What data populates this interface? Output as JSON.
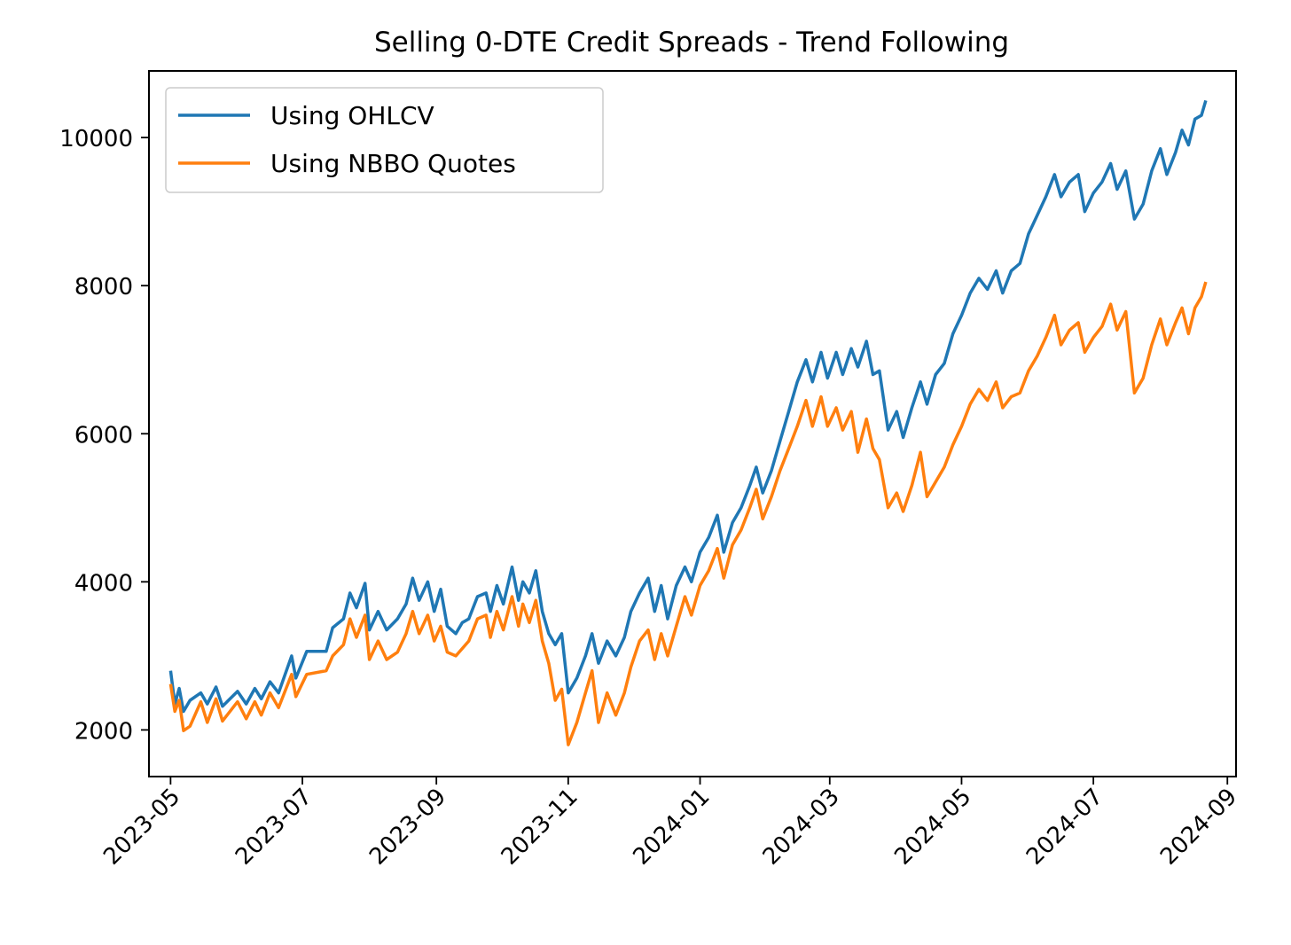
{
  "chart_data": {
    "type": "line",
    "title": "Selling 0-DTE Credit Spreads - Trend Following",
    "xlabel": "",
    "ylabel": "",
    "xlim": [
      "2023-04-21",
      "2024-09-05"
    ],
    "ylim": [
      1370,
      10900
    ],
    "x_ticks": [
      "2023-05",
      "2023-07",
      "2023-09",
      "2023-11",
      "2024-01",
      "2024-03",
      "2024-05",
      "2024-07",
      "2024-09"
    ],
    "y_ticks": [
      "2000",
      "4000",
      "6000",
      "8000",
      "10000"
    ],
    "grid": false,
    "legend_position": "upper-left",
    "series": [
      {
        "name": "Using OHLCV",
        "color": "#1f77b4",
        "points": [
          [
            "2023-05-01",
            2800
          ],
          [
            "2023-05-03",
            2350
          ],
          [
            "2023-05-05",
            2560
          ],
          [
            "2023-05-07",
            2250
          ],
          [
            "2023-05-10",
            2400
          ],
          [
            "2023-05-15",
            2500
          ],
          [
            "2023-05-18",
            2350
          ],
          [
            "2023-05-22",
            2580
          ],
          [
            "2023-05-25",
            2320
          ],
          [
            "2023-06-01",
            2520
          ],
          [
            "2023-06-05",
            2350
          ],
          [
            "2023-06-09",
            2560
          ],
          [
            "2023-06-12",
            2420
          ],
          [
            "2023-06-16",
            2650
          ],
          [
            "2023-06-20",
            2500
          ],
          [
            "2023-06-26",
            3000
          ],
          [
            "2023-06-28",
            2700
          ],
          [
            "2023-07-03",
            3060
          ],
          [
            "2023-07-12",
            3060
          ],
          [
            "2023-07-15",
            3380
          ],
          [
            "2023-07-20",
            3500
          ],
          [
            "2023-07-23",
            3850
          ],
          [
            "2023-07-26",
            3650
          ],
          [
            "2023-07-30",
            3980
          ],
          [
            "2023-08-01",
            3350
          ],
          [
            "2023-08-05",
            3600
          ],
          [
            "2023-08-09",
            3350
          ],
          [
            "2023-08-14",
            3500
          ],
          [
            "2023-08-18",
            3700
          ],
          [
            "2023-08-21",
            4050
          ],
          [
            "2023-08-24",
            3750
          ],
          [
            "2023-08-28",
            4000
          ],
          [
            "2023-08-31",
            3600
          ],
          [
            "2023-09-03",
            3900
          ],
          [
            "2023-09-06",
            3400
          ],
          [
            "2023-09-10",
            3300
          ],
          [
            "2023-09-13",
            3450
          ],
          [
            "2023-09-16",
            3500
          ],
          [
            "2023-09-20",
            3800
          ],
          [
            "2023-09-24",
            3850
          ],
          [
            "2023-09-26",
            3600
          ],
          [
            "2023-09-29",
            3950
          ],
          [
            "2023-10-02",
            3700
          ],
          [
            "2023-10-06",
            4200
          ],
          [
            "2023-10-09",
            3750
          ],
          [
            "2023-10-11",
            4000
          ],
          [
            "2023-10-14",
            3850
          ],
          [
            "2023-10-17",
            4150
          ],
          [
            "2023-10-20",
            3600
          ],
          [
            "2023-10-23",
            3300
          ],
          [
            "2023-10-26",
            3150
          ],
          [
            "2023-10-29",
            3300
          ],
          [
            "2023-11-01",
            2500
          ],
          [
            "2023-11-05",
            2700
          ],
          [
            "2023-11-09",
            3000
          ],
          [
            "2023-11-12",
            3300
          ],
          [
            "2023-11-15",
            2900
          ],
          [
            "2023-11-19",
            3200
          ],
          [
            "2023-11-23",
            3000
          ],
          [
            "2023-11-27",
            3250
          ],
          [
            "2023-11-30",
            3600
          ],
          [
            "2023-12-04",
            3850
          ],
          [
            "2023-12-08",
            4050
          ],
          [
            "2023-12-11",
            3600
          ],
          [
            "2023-12-14",
            3950
          ],
          [
            "2023-12-17",
            3500
          ],
          [
            "2023-12-21",
            3950
          ],
          [
            "2023-12-25",
            4200
          ],
          [
            "2023-12-28",
            4000
          ],
          [
            "2024-01-01",
            4400
          ],
          [
            "2024-01-05",
            4600
          ],
          [
            "2024-01-09",
            4900
          ],
          [
            "2024-01-12",
            4400
          ],
          [
            "2024-01-16",
            4800
          ],
          [
            "2024-01-20",
            5000
          ],
          [
            "2024-01-24",
            5300
          ],
          [
            "2024-01-27",
            5550
          ],
          [
            "2024-01-30",
            5200
          ],
          [
            "2024-02-03",
            5500
          ],
          [
            "2024-02-07",
            5900
          ],
          [
            "2024-02-11",
            6300
          ],
          [
            "2024-02-15",
            6700
          ],
          [
            "2024-02-19",
            7000
          ],
          [
            "2024-02-22",
            6700
          ],
          [
            "2024-02-26",
            7100
          ],
          [
            "2024-02-29",
            6750
          ],
          [
            "2024-03-04",
            7100
          ],
          [
            "2024-03-07",
            6800
          ],
          [
            "2024-03-11",
            7150
          ],
          [
            "2024-03-14",
            6900
          ],
          [
            "2024-03-18",
            7250
          ],
          [
            "2024-03-21",
            6800
          ],
          [
            "2024-03-24",
            6850
          ],
          [
            "2024-03-28",
            6050
          ],
          [
            "2024-04-01",
            6300
          ],
          [
            "2024-04-04",
            5950
          ],
          [
            "2024-04-08",
            6350
          ],
          [
            "2024-04-12",
            6700
          ],
          [
            "2024-04-15",
            6400
          ],
          [
            "2024-04-19",
            6800
          ],
          [
            "2024-04-23",
            6950
          ],
          [
            "2024-04-27",
            7350
          ],
          [
            "2024-05-01",
            7600
          ],
          [
            "2024-05-05",
            7900
          ],
          [
            "2024-05-09",
            8100
          ],
          [
            "2024-05-13",
            7950
          ],
          [
            "2024-05-17",
            8200
          ],
          [
            "2024-05-20",
            7900
          ],
          [
            "2024-05-24",
            8200
          ],
          [
            "2024-05-28",
            8300
          ],
          [
            "2024-06-01",
            8700
          ],
          [
            "2024-06-05",
            8950
          ],
          [
            "2024-06-09",
            9200
          ],
          [
            "2024-06-13",
            9500
          ],
          [
            "2024-06-16",
            9200
          ],
          [
            "2024-06-20",
            9400
          ],
          [
            "2024-06-24",
            9500
          ],
          [
            "2024-06-27",
            9000
          ],
          [
            "2024-07-01",
            9250
          ],
          [
            "2024-07-05",
            9400
          ],
          [
            "2024-07-09",
            9650
          ],
          [
            "2024-07-12",
            9300
          ],
          [
            "2024-07-16",
            9550
          ],
          [
            "2024-07-20",
            8900
          ],
          [
            "2024-07-24",
            9100
          ],
          [
            "2024-07-28",
            9550
          ],
          [
            "2024-08-01",
            9850
          ],
          [
            "2024-08-04",
            9500
          ],
          [
            "2024-08-08",
            9800
          ],
          [
            "2024-08-11",
            10100
          ],
          [
            "2024-08-14",
            9900
          ],
          [
            "2024-08-17",
            10250
          ],
          [
            "2024-08-20",
            10300
          ],
          [
            "2024-08-22",
            10500
          ]
        ]
      },
      {
        "name": "Using NBBO Quotes",
        "color": "#ff7f0e",
        "points": [
          [
            "2023-05-01",
            2620
          ],
          [
            "2023-05-03",
            2250
          ],
          [
            "2023-05-05",
            2400
          ],
          [
            "2023-05-07",
            1990
          ],
          [
            "2023-05-10",
            2050
          ],
          [
            "2023-05-15",
            2380
          ],
          [
            "2023-05-18",
            2100
          ],
          [
            "2023-05-22",
            2420
          ],
          [
            "2023-05-25",
            2120
          ],
          [
            "2023-06-01",
            2380
          ],
          [
            "2023-06-05",
            2150
          ],
          [
            "2023-06-09",
            2380
          ],
          [
            "2023-06-12",
            2200
          ],
          [
            "2023-06-16",
            2500
          ],
          [
            "2023-06-20",
            2300
          ],
          [
            "2023-06-26",
            2750
          ],
          [
            "2023-06-28",
            2450
          ],
          [
            "2023-07-03",
            2750
          ],
          [
            "2023-07-12",
            2800
          ],
          [
            "2023-07-15",
            3000
          ],
          [
            "2023-07-20",
            3150
          ],
          [
            "2023-07-23",
            3500
          ],
          [
            "2023-07-26",
            3250
          ],
          [
            "2023-07-30",
            3550
          ],
          [
            "2023-08-01",
            2950
          ],
          [
            "2023-08-05",
            3200
          ],
          [
            "2023-08-09",
            2950
          ],
          [
            "2023-08-14",
            3050
          ],
          [
            "2023-08-18",
            3300
          ],
          [
            "2023-08-21",
            3600
          ],
          [
            "2023-08-24",
            3300
          ],
          [
            "2023-08-28",
            3550
          ],
          [
            "2023-08-31",
            3200
          ],
          [
            "2023-09-03",
            3400
          ],
          [
            "2023-09-06",
            3050
          ],
          [
            "2023-09-10",
            3000
          ],
          [
            "2023-09-13",
            3100
          ],
          [
            "2023-09-16",
            3200
          ],
          [
            "2023-09-20",
            3500
          ],
          [
            "2023-09-24",
            3550
          ],
          [
            "2023-09-26",
            3250
          ],
          [
            "2023-09-29",
            3600
          ],
          [
            "2023-10-02",
            3350
          ],
          [
            "2023-10-06",
            3800
          ],
          [
            "2023-10-09",
            3400
          ],
          [
            "2023-10-11",
            3700
          ],
          [
            "2023-10-14",
            3450
          ],
          [
            "2023-10-17",
            3750
          ],
          [
            "2023-10-20",
            3200
          ],
          [
            "2023-10-23",
            2900
          ],
          [
            "2023-10-26",
            2400
          ],
          [
            "2023-10-29",
            2550
          ],
          [
            "2023-11-01",
            1800
          ],
          [
            "2023-11-05",
            2100
          ],
          [
            "2023-11-09",
            2500
          ],
          [
            "2023-11-12",
            2800
          ],
          [
            "2023-11-15",
            2100
          ],
          [
            "2023-11-19",
            2500
          ],
          [
            "2023-11-23",
            2200
          ],
          [
            "2023-11-27",
            2500
          ],
          [
            "2023-11-30",
            2850
          ],
          [
            "2023-12-04",
            3200
          ],
          [
            "2023-12-08",
            3350
          ],
          [
            "2023-12-11",
            2950
          ],
          [
            "2023-12-14",
            3300
          ],
          [
            "2023-12-17",
            3000
          ],
          [
            "2023-12-21",
            3400
          ],
          [
            "2023-12-25",
            3800
          ],
          [
            "2023-12-28",
            3550
          ],
          [
            "2024-01-01",
            3950
          ],
          [
            "2024-01-05",
            4150
          ],
          [
            "2024-01-09",
            4450
          ],
          [
            "2024-01-12",
            4050
          ],
          [
            "2024-01-16",
            4500
          ],
          [
            "2024-01-20",
            4700
          ],
          [
            "2024-01-24",
            5000
          ],
          [
            "2024-01-27",
            5250
          ],
          [
            "2024-01-30",
            4850
          ],
          [
            "2024-02-03",
            5150
          ],
          [
            "2024-02-07",
            5500
          ],
          [
            "2024-02-11",
            5800
          ],
          [
            "2024-02-15",
            6100
          ],
          [
            "2024-02-19",
            6450
          ],
          [
            "2024-02-22",
            6100
          ],
          [
            "2024-02-26",
            6500
          ],
          [
            "2024-02-29",
            6100
          ],
          [
            "2024-03-04",
            6350
          ],
          [
            "2024-03-07",
            6050
          ],
          [
            "2024-03-11",
            6300
          ],
          [
            "2024-03-14",
            5750
          ],
          [
            "2024-03-18",
            6200
          ],
          [
            "2024-03-21",
            5800
          ],
          [
            "2024-03-24",
            5650
          ],
          [
            "2024-03-28",
            5000
          ],
          [
            "2024-04-01",
            5200
          ],
          [
            "2024-04-04",
            4950
          ],
          [
            "2024-04-08",
            5300
          ],
          [
            "2024-04-12",
            5750
          ],
          [
            "2024-04-15",
            5150
          ],
          [
            "2024-04-19",
            5350
          ],
          [
            "2024-04-23",
            5550
          ],
          [
            "2024-04-27",
            5850
          ],
          [
            "2024-05-01",
            6100
          ],
          [
            "2024-05-05",
            6400
          ],
          [
            "2024-05-09",
            6600
          ],
          [
            "2024-05-13",
            6450
          ],
          [
            "2024-05-17",
            6700
          ],
          [
            "2024-05-20",
            6350
          ],
          [
            "2024-05-24",
            6500
          ],
          [
            "2024-05-28",
            6550
          ],
          [
            "2024-06-01",
            6850
          ],
          [
            "2024-06-05",
            7050
          ],
          [
            "2024-06-09",
            7300
          ],
          [
            "2024-06-13",
            7600
          ],
          [
            "2024-06-16",
            7200
          ],
          [
            "2024-06-20",
            7400
          ],
          [
            "2024-06-24",
            7500
          ],
          [
            "2024-06-27",
            7100
          ],
          [
            "2024-07-01",
            7300
          ],
          [
            "2024-07-05",
            7450
          ],
          [
            "2024-07-09",
            7750
          ],
          [
            "2024-07-12",
            7400
          ],
          [
            "2024-07-16",
            7650
          ],
          [
            "2024-07-20",
            6550
          ],
          [
            "2024-07-24",
            6750
          ],
          [
            "2024-07-28",
            7200
          ],
          [
            "2024-08-01",
            7550
          ],
          [
            "2024-08-04",
            7200
          ],
          [
            "2024-08-08",
            7500
          ],
          [
            "2024-08-11",
            7700
          ],
          [
            "2024-08-14",
            7350
          ],
          [
            "2024-08-17",
            7700
          ],
          [
            "2024-08-20",
            7850
          ],
          [
            "2024-08-22",
            8050
          ]
        ]
      }
    ]
  }
}
